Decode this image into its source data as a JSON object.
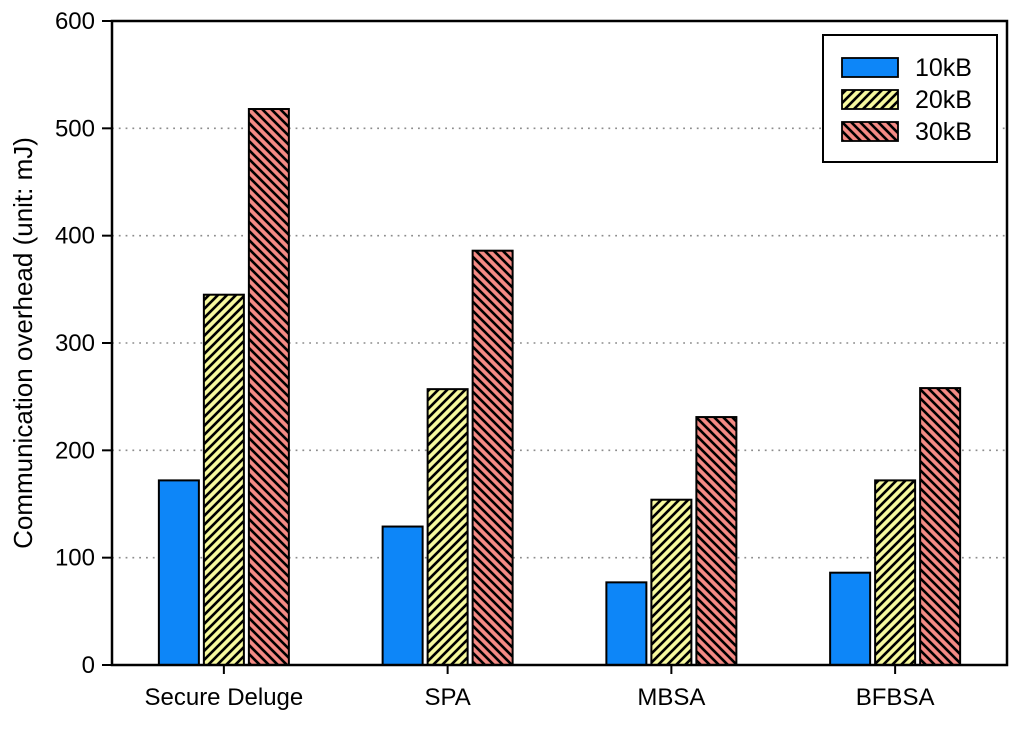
{
  "chart_data": {
    "type": "bar",
    "title": "",
    "xlabel": "",
    "ylabel": "Communication overhead (unit: mJ)",
    "categories": [
      "Secure Deluge",
      "SPA",
      "MBSA",
      "BFBSA"
    ],
    "series": [
      {
        "name": "10kB",
        "values": [
          172,
          129,
          77,
          86
        ],
        "fill": "#0d86f8",
        "hatch": "none"
      },
      {
        "name": "20kB",
        "values": [
          345,
          257,
          154,
          172
        ],
        "fill": "#f6f89e",
        "hatch": "forward"
      },
      {
        "name": "30kB",
        "values": [
          518,
          386,
          231,
          258
        ],
        "fill": "#f38a84",
        "hatch": "backward"
      }
    ],
    "ylim": [
      0,
      600
    ],
    "ytick_step": 100,
    "yticks": [
      0,
      100,
      200,
      300,
      400,
      500,
      600
    ],
    "grid": "horizontal-dotted",
    "legend_position": "top-right",
    "legend_labels": [
      "10kB",
      "20kB",
      "30kB"
    ]
  },
  "style_colors": {
    "axis": "#000000",
    "gridline": "#8c8c8c",
    "bar_edge": "#000000",
    "hatch_line": "#000000",
    "legend_border": "#000000",
    "background": "#ffffff"
  }
}
